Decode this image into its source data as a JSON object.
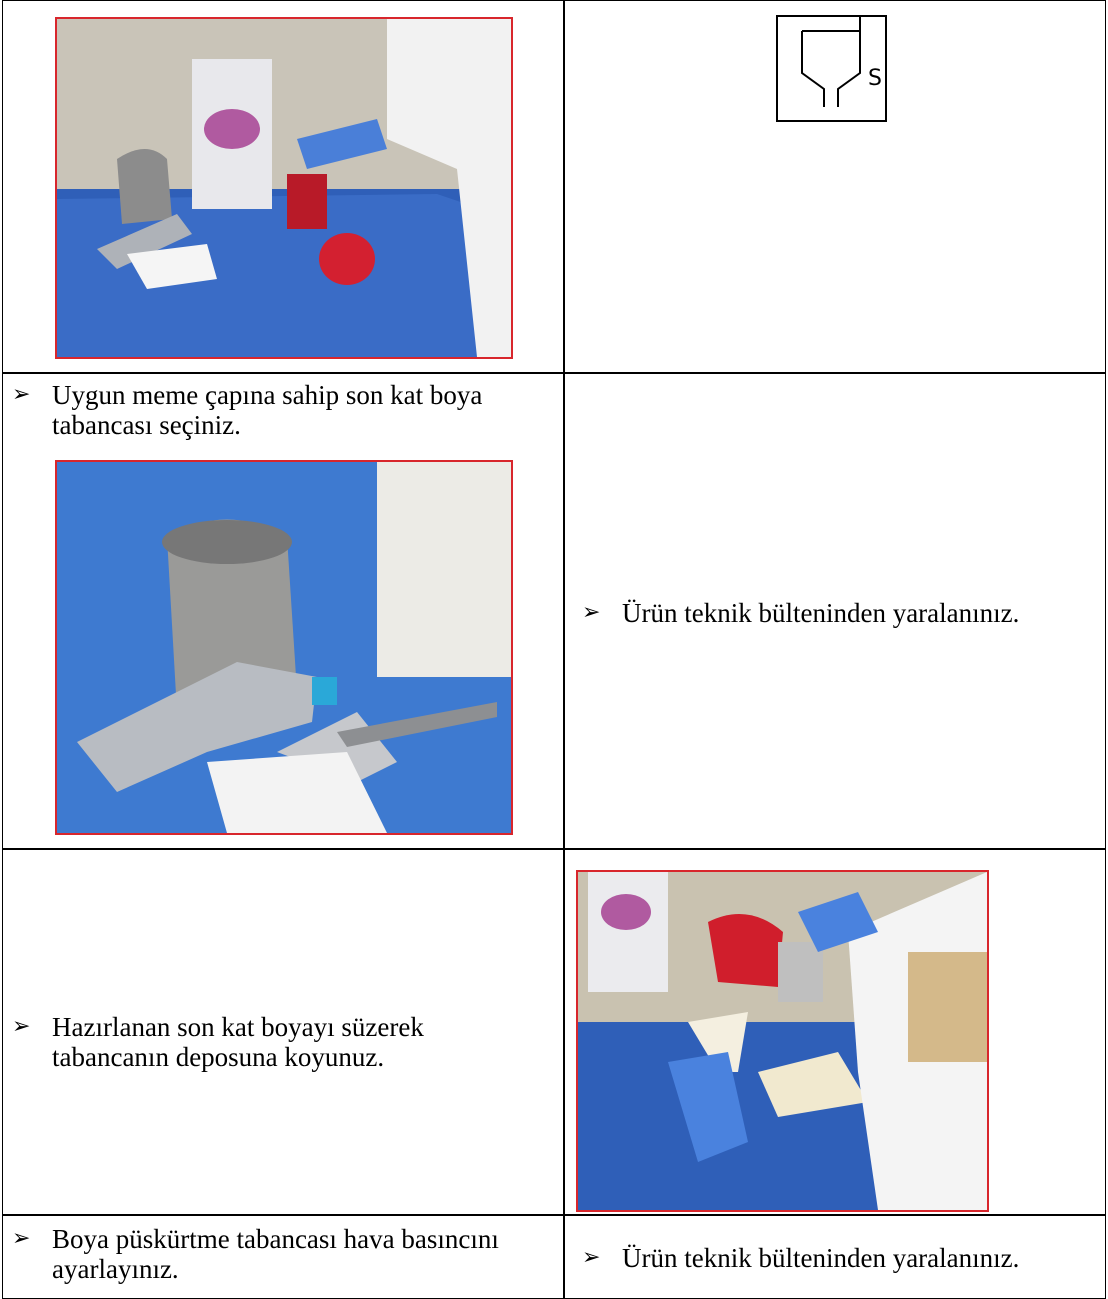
{
  "table": {
    "rows": [
      {
        "right": {
          "symbol_label": "S"
        }
      },
      {
        "left": "Uygun meme çapına sahip son kat boya tabancası seçiniz.",
        "right": "Ürün teknik bülteninden yaralanınız."
      },
      {
        "left": "Hazırlanan son kat boyayı süzerek tabancanın deposuna koyunuz."
      },
      {
        "left": "Boya püskürtme tabancası hava basıncını ayarlayınız.",
        "right": "Ürün teknik bülteninden yaralanınız."
      }
    ]
  }
}
